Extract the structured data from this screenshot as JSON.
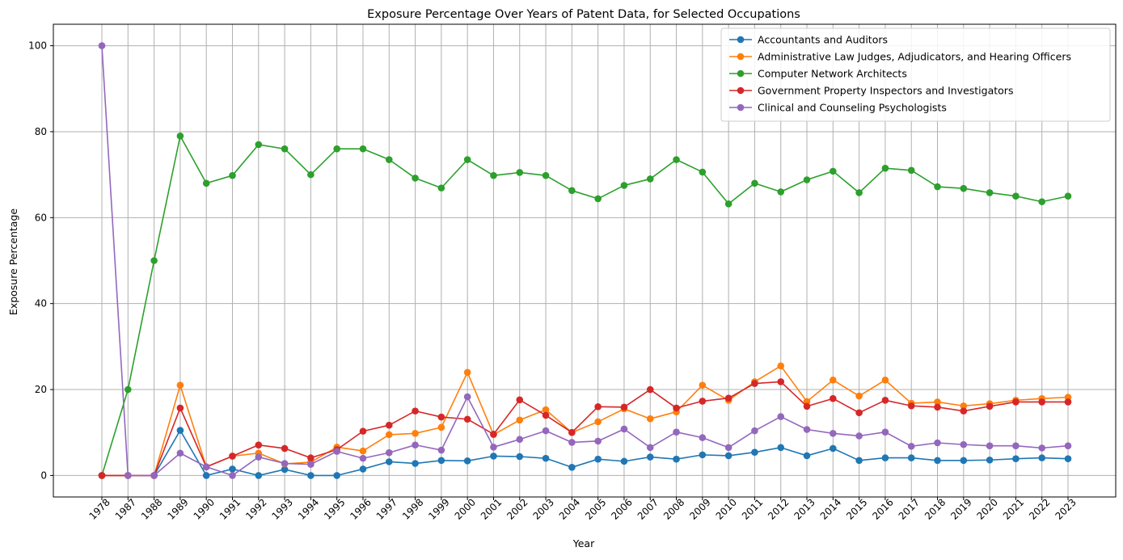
{
  "chart_data": {
    "type": "line",
    "title": "Exposure Percentage Over Years of Patent Data, for Selected Occupations",
    "xlabel": "Year",
    "ylabel": "Exposure Percentage",
    "categories": [
      "1978",
      "1987",
      "1988",
      "1989",
      "1990",
      "1991",
      "1992",
      "1993",
      "1994",
      "1995",
      "1996",
      "1997",
      "1998",
      "1999",
      "2000",
      "2001",
      "2002",
      "2003",
      "2004",
      "2005",
      "2006",
      "2007",
      "2008",
      "2009",
      "2010",
      "2011",
      "2012",
      "2013",
      "2014",
      "2015",
      "2016",
      "2017",
      "2018",
      "2019",
      "2020",
      "2021",
      "2022",
      "2023"
    ],
    "ylim": [
      -5,
      105
    ],
    "yticks": [
      0,
      20,
      40,
      60,
      80,
      100
    ],
    "grid": true,
    "legend_position": "top-right",
    "series": [
      {
        "name": "Accountants and Auditors",
        "color": "#1f77b4",
        "values": [
          0,
          0,
          0,
          10.5,
          0,
          1.5,
          0,
          1.4,
          0,
          0,
          1.5,
          3.2,
          2.8,
          3.5,
          3.4,
          4.5,
          4.4,
          4.0,
          1.9,
          3.8,
          3.3,
          4.3,
          3.8,
          4.8,
          4.6,
          5.4,
          6.5,
          4.6,
          6.3,
          3.5,
          4.1,
          4.1,
          3.5,
          3.5,
          3.6,
          3.9,
          4.1,
          3.9
        ]
      },
      {
        "name": "Administrative Law Judges, Adjudicators, and Hearing Officers",
        "color": "#ff7f0e",
        "values": [
          0,
          0,
          0,
          21.0,
          2.0,
          4.5,
          5.2,
          2.7,
          3.1,
          6.6,
          5.7,
          9.5,
          9.8,
          11.2,
          24.0,
          9.5,
          12.9,
          15.3,
          10.0,
          12.5,
          15.5,
          13.2,
          14.8,
          21.0,
          17.5,
          21.8,
          25.5,
          17.2,
          22.2,
          18.5,
          22.2,
          16.8,
          17.1,
          16.2,
          16.7,
          17.5,
          17.9,
          18.2
        ]
      },
      {
        "name": "Computer Network Architects",
        "color": "#2ca02c",
        "values": [
          0,
          20.0,
          50.0,
          79.0,
          68.0,
          69.8,
          77.0,
          76.0,
          70.0,
          76.0,
          76.0,
          73.5,
          69.2,
          66.9,
          73.5,
          69.8,
          70.5,
          69.8,
          66.3,
          64.4,
          67.5,
          69.0,
          73.5,
          70.6,
          63.2,
          68.0,
          66.0,
          68.8,
          70.8,
          65.8,
          71.5,
          71.0,
          67.2,
          66.8,
          65.8,
          65.0,
          63.7,
          65.0
        ]
      },
      {
        "name": "Government Property Inspectors and Investigators",
        "color": "#d62728",
        "values": [
          0,
          0,
          0,
          15.7,
          2.0,
          4.5,
          7.1,
          6.3,
          4.1,
          6.0,
          10.3,
          11.7,
          15.0,
          13.6,
          13.1,
          9.6,
          17.6,
          14.0,
          10.0,
          16.0,
          15.9,
          20.0,
          15.7,
          17.3,
          18.0,
          21.4,
          21.8,
          16.1,
          17.9,
          14.6,
          17.5,
          16.2,
          15.9,
          15.0,
          16.1,
          17.1,
          17.1,
          17.1
        ]
      },
      {
        "name": "Clinical and Counseling Psychologists",
        "color": "#9467bd",
        "values": [
          100,
          0,
          0,
          5.2,
          2.0,
          0,
          4.3,
          2.8,
          2.6,
          5.6,
          4.0,
          5.3,
          7.1,
          5.9,
          18.3,
          6.6,
          8.4,
          10.4,
          7.7,
          8.0,
          10.8,
          6.5,
          10.1,
          8.8,
          6.5,
          10.4,
          13.7,
          10.7,
          9.8,
          9.2,
          10.1,
          6.8,
          7.6,
          7.2,
          6.9,
          6.9,
          6.4,
          6.9
        ]
      }
    ]
  }
}
